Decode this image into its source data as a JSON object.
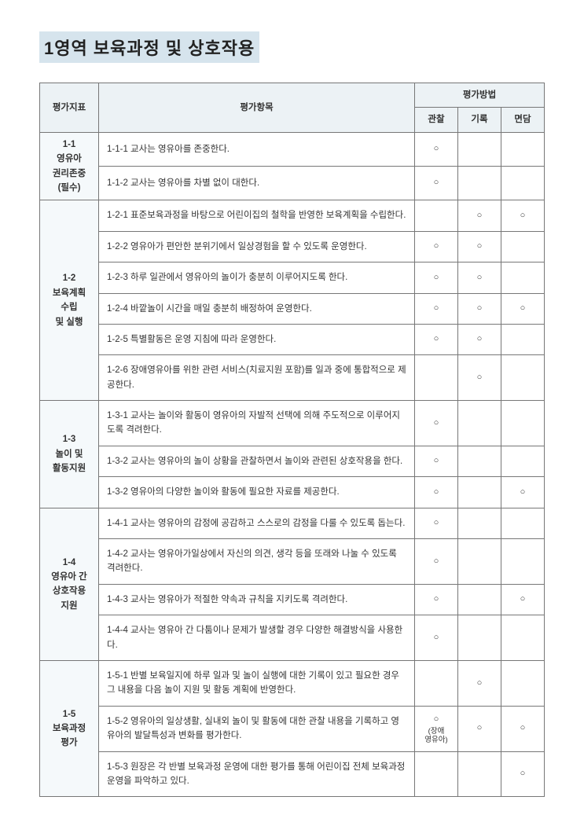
{
  "title": "1영역 보육과정 및 상호작용",
  "headers": {
    "indicator": "평가지표",
    "item": "평가항목",
    "method": "평가방법",
    "obs": "관찰",
    "rec": "기록",
    "intv": "면담"
  },
  "marks": {
    "circle": "○"
  },
  "colWidths": {
    "indicator": 75,
    "obs": 55,
    "rec": 55,
    "intv": 55
  },
  "groups": [
    {
      "label": "1-1\n영유아\n권리존중\n(필수)",
      "rows": [
        {
          "text": "1-1-1 교사는 영유아를 존중한다.",
          "obs": "○",
          "rec": "",
          "intv": ""
        },
        {
          "text": "1-1-2 교사는 영유아를 차별 없이 대한다.",
          "obs": "○",
          "rec": "",
          "intv": ""
        }
      ]
    },
    {
      "label": "1-2\n보육계획\n수립\n및 실행",
      "rows": [
        {
          "text": "1-2-1 표준보육과정을 바탕으로 어린이집의 철학을 반영한 보육계획을 수립한다.",
          "obs": "",
          "rec": "○",
          "intv": "○"
        },
        {
          "text": "1-2-2 영유아가 편안한 분위기에서 일상경험을 할 수 있도록 운영한다.",
          "obs": "○",
          "rec": "○",
          "intv": ""
        },
        {
          "text": "1-2-3 하루 일관에서 영유아의 놀이가 충분히 이루어지도록 한다.",
          "obs": "○",
          "rec": "○",
          "intv": ""
        },
        {
          "text": "1-2-4 바깥놀이 시간을 매일 충분히 배정하여 운영한다.",
          "obs": "○",
          "rec": "○",
          "intv": "○"
        },
        {
          "text": "1-2-5 특별활동은 운영 지침에 따라 운영한다.",
          "obs": "○",
          "rec": "○",
          "intv": ""
        },
        {
          "text": "1-2-6 장애영유아를 위한 관련 서비스(치료지원 포함)를 일과 중에 통합적으로 제공한다.",
          "obs": "",
          "rec": "○",
          "intv": ""
        }
      ]
    },
    {
      "label": "1-3\n놀이 및\n활동지원",
      "rows": [
        {
          "text": "1-3-1 교사는 놀이와 활동이 영유아의 자발적 선택에 의해 주도적으로 이루어지도록 격려한다.",
          "obs": "○",
          "rec": "",
          "intv": ""
        },
        {
          "text": "1-3-2 교사는 영유아의 놀이 상황을 관찰하면서 놀이와 관련된 상호작용을 한다.",
          "obs": "○",
          "rec": "",
          "intv": ""
        },
        {
          "text": "1-3-2 영유아의 다양한 놀이와 활동에 필요한 자료를 제공한다.",
          "obs": "○",
          "rec": "",
          "intv": "○"
        }
      ]
    },
    {
      "label": "1-4\n영유아 간\n상호작용\n지원",
      "rows": [
        {
          "text": "1-4-1 교사는 영유아의 감정에 공감하고 스스로의 감정을 다룰 수 있도록 돕는다.",
          "obs": "○",
          "rec": "",
          "intv": ""
        },
        {
          "text": "1-4-2 교사는 영유아가일상에서 자신의 의견, 생각 등을 또래와 나눌 수 있도록 격려한다.",
          "obs": "○",
          "rec": "",
          "intv": ""
        },
        {
          "text": "1-4-3 교사는 영유아가 적절한 약속과 규칙을 지키도록 격려한다.",
          "obs": "○",
          "rec": "",
          "intv": "○"
        },
        {
          "text": "1-4-4 교사는 영유아 간 다툼이나 문제가 발생할 경우 다양한 해결방식을 사용한다.",
          "obs": "○",
          "rec": "",
          "intv": ""
        }
      ]
    },
    {
      "label": "1-5\n보육과정\n평가",
      "rows": [
        {
          "text": "1-5-1 반별 보육일지에 하루 일과 및 놀이 실행에 대한 기록이 있고 필요한 경우 그 내용을 다음 놀이 지원 및 활동 계획에 반영한다.",
          "obs": "",
          "rec": "○",
          "intv": ""
        },
        {
          "text": "1-5-2 영유아의 일상생활, 실내외 놀이 및 활동에 대한 관찰 내용을 기록하고 영유아의 발달특성과 변화를 평가한다.",
          "obs": "○",
          "obsSub": "(장애\n영유아)",
          "rec": "○",
          "intv": "○"
        },
        {
          "text": "1-5-3 원장은 각 반별 보육과정 운영에 대한 평가를 통해 어린이집 전체 보육과정 운영을 파악하고 있다.",
          "obs": "",
          "rec": "",
          "intv": "○"
        }
      ]
    }
  ]
}
